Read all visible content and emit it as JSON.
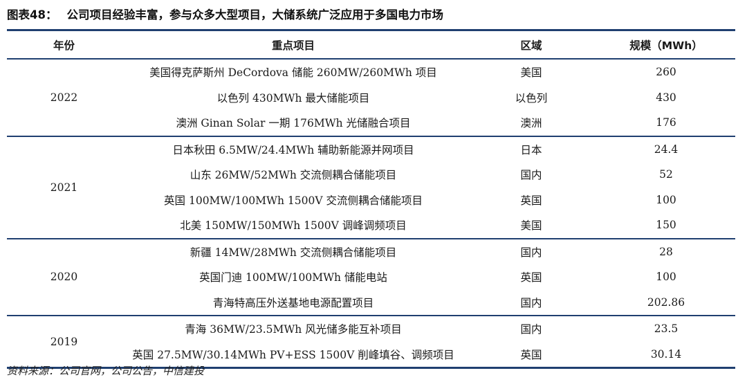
{
  "figure": {
    "label": "图表48：",
    "title": "公司项目经验丰富，参与众多大型项目，大储系统广泛应用于多国电力市场"
  },
  "table": {
    "headers": {
      "year": "年份",
      "project": "重点项目",
      "region": "区域",
      "scale": "规模（MWh）"
    },
    "groups": [
      {
        "year": "2022",
        "rows": [
          {
            "project": "美国得克萨斯州 DeCordova 储能 260MW/260MWh 项目",
            "region": "美国",
            "scale": "260"
          },
          {
            "project": "以色列  430MWh  最大储能项目",
            "region": "以色列",
            "scale": "430"
          },
          {
            "project": "澳洲  Ginan Solar  一期  176MWh  光储融合项目",
            "region": "澳洲",
            "scale": "176"
          }
        ]
      },
      {
        "year": "2021",
        "rows": [
          {
            "project": "日本秋田 6.5MW/24.4MWh 辅助新能源并网项目",
            "region": "日本",
            "scale": "24.4"
          },
          {
            "project": "山东 26MW/52MWh 交流侧耦合储能项目",
            "region": "国内",
            "scale": "52"
          },
          {
            "project": "英国 100MW/100MWh 1500V 交流侧耦合储能项目",
            "region": "英国",
            "scale": "100"
          },
          {
            "project": "北美 150MW/150MWh 1500V 调峰调频项目",
            "region": "美国",
            "scale": "150"
          }
        ]
      },
      {
        "year": "2020",
        "rows": [
          {
            "project": "新疆 14MW/28MWh 交流侧耦合储能项目",
            "region": "国内",
            "scale": "28"
          },
          {
            "project": "英国门迪 100MW/100MWh 储能电站",
            "region": "英国",
            "scale": "100"
          },
          {
            "project": "青海特高压外送基地电源配置项目",
            "region": "国内",
            "scale": "202.86"
          }
        ]
      },
      {
        "year": "2019",
        "rows": [
          {
            "project": "青海 36MW/23.5MWh 风光储多能互补项目",
            "region": "国内",
            "scale": "23.5"
          },
          {
            "project": "英国 27.5MW/30.14MWh PV+ESS 1500V 削峰填谷、调频项目",
            "region": "英国",
            "scale": "30.14"
          }
        ]
      }
    ]
  },
  "source": "资料来源：公司官网，公司公告，中信建投",
  "colors": {
    "rule": "#1f3f70",
    "text": "#1a1a1a"
  }
}
